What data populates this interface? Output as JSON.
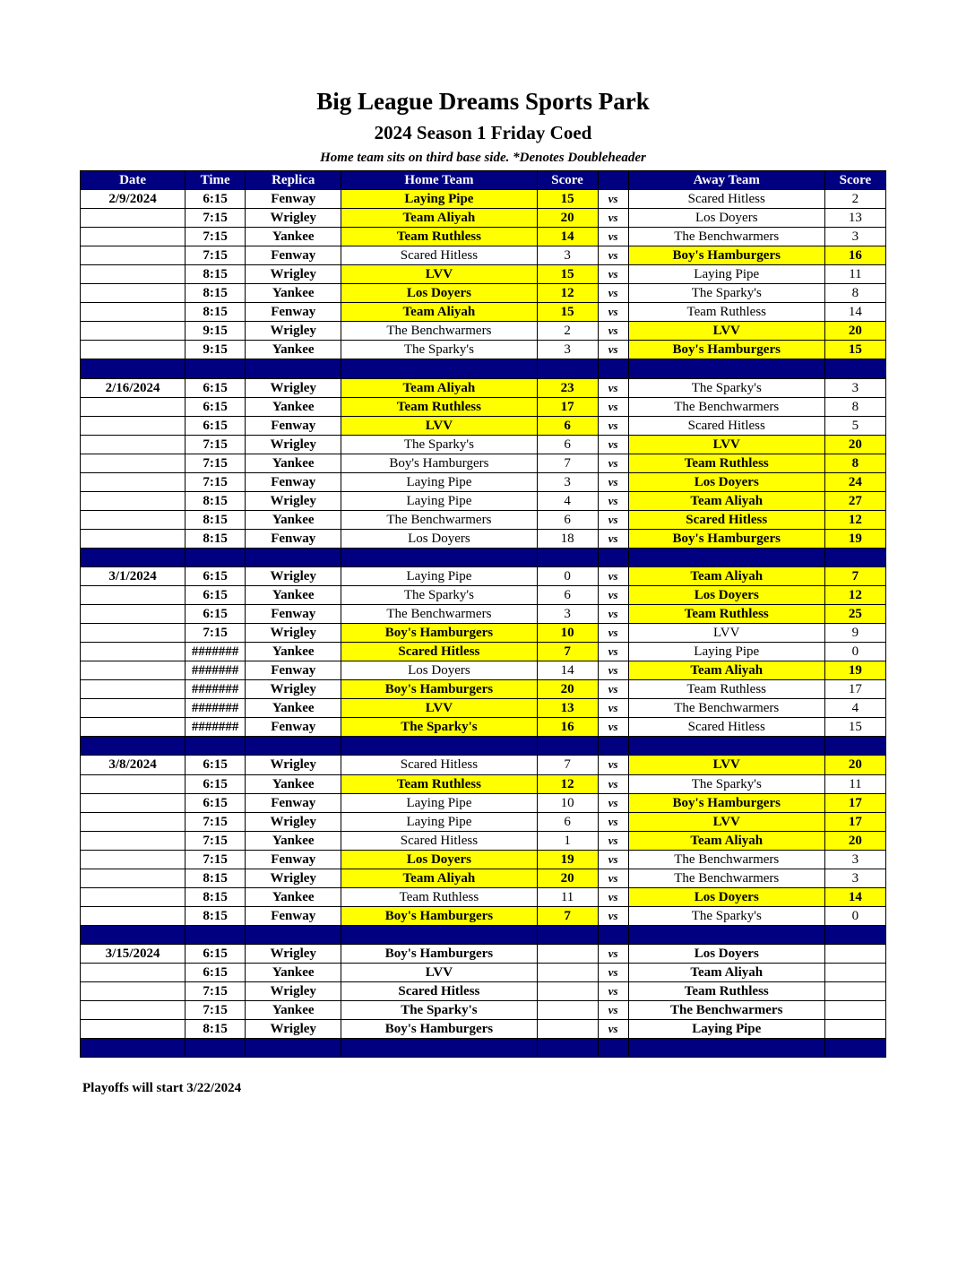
{
  "title": "Big League Dreams Sports Park",
  "subtitle": "2024 Season 1 Friday Coed",
  "note": "Home team sits on third base side.  *Denotes Doubleheader",
  "headers": [
    "Date",
    "Time",
    "Replica",
    "Home Team",
    "Score",
    "",
    "Away Team",
    "Score"
  ],
  "vs_label": "vs",
  "footer": "Playoffs will start 3/22/2024",
  "colors": {
    "header": "#000080",
    "winner": "#ffff00"
  },
  "weeks": [
    {
      "date": "2/9/2024",
      "games": [
        [
          "6:15",
          "Fenway",
          "Laying Pipe",
          "15",
          "Scared Hitless",
          "2",
          "home"
        ],
        [
          "7:15",
          "Wrigley",
          "Team Aliyah",
          "20",
          "Los Doyers",
          "13",
          "home"
        ],
        [
          "7:15",
          "Yankee",
          "Team Ruthless",
          "14",
          "The Benchwarmers",
          "3",
          "home"
        ],
        [
          "7:15",
          "Fenway",
          "Scared Hitless",
          "3",
          "Boy's Hamburgers",
          "16",
          "away"
        ],
        [
          "8:15",
          "Wrigley",
          "LVV",
          "15",
          "Laying Pipe",
          "11",
          "home"
        ],
        [
          "8:15",
          "Yankee",
          "Los Doyers",
          "12",
          "The Sparky's",
          "8",
          "home"
        ],
        [
          "8:15",
          "Fenway",
          "Team Aliyah",
          "15",
          "Team Ruthless",
          "14",
          "home"
        ],
        [
          "9:15",
          "Wrigley",
          "The Benchwarmers",
          "2",
          "LVV",
          "20",
          "away"
        ],
        [
          "9:15",
          "Yankee",
          "The Sparky's",
          "3",
          "Boy's Hamburgers",
          "15",
          "away"
        ]
      ]
    },
    {
      "date": "2/16/2024",
      "games": [
        [
          "6:15",
          "Wrigley",
          "Team Aliyah",
          "23",
          "The Sparky's",
          "3",
          "home"
        ],
        [
          "6:15",
          "Yankee",
          "Team Ruthless",
          "17",
          "The Benchwarmers",
          "8",
          "home"
        ],
        [
          "6:15",
          "Fenway",
          "LVV",
          "6",
          "Scared Hitless",
          "5",
          "home"
        ],
        [
          "7:15",
          "Wrigley",
          "The Sparky's",
          "6",
          "LVV",
          "20",
          "away"
        ],
        [
          "7:15",
          "Yankee",
          "Boy's Hamburgers",
          "7",
          "Team Ruthless",
          "8",
          "away"
        ],
        [
          "7:15",
          "Fenway",
          "Laying Pipe",
          "3",
          "Los Doyers",
          "24",
          "away"
        ],
        [
          "8:15",
          "Wrigley",
          "Laying Pipe",
          "4",
          "Team Aliyah",
          "27",
          "away"
        ],
        [
          "8:15",
          "Yankee",
          "The Benchwarmers",
          "6",
          "Scared Hitless",
          "12",
          "away"
        ],
        [
          "8:15",
          "Fenway",
          "Los Doyers",
          "18",
          "Boy's Hamburgers",
          "19",
          "away"
        ]
      ]
    },
    {
      "date": "3/1/2024",
      "games": [
        [
          "6:15",
          "Wrigley",
          "Laying Pipe",
          "0",
          "Team Aliyah",
          "7",
          "away"
        ],
        [
          "6:15",
          "Yankee",
          "The Sparky's",
          "6",
          "Los Doyers",
          "12",
          "away"
        ],
        [
          "6:15",
          "Fenway",
          "The Benchwarmers",
          "3",
          "Team Ruthless",
          "25",
          "away"
        ],
        [
          "7:15",
          "Wrigley",
          "Boy's Hamburgers",
          "10",
          "LVV",
          "9",
          "home"
        ],
        [
          "#######",
          "Yankee",
          "Scared Hitless",
          "7",
          "Laying Pipe",
          "0",
          "home"
        ],
        [
          "#######",
          "Fenway",
          "Los Doyers",
          "14",
          "Team Aliyah",
          "19",
          "away"
        ],
        [
          "#######",
          "Wrigley",
          "Boy's Hamburgers",
          "20",
          "Team Ruthless",
          "17",
          "home"
        ],
        [
          "#######",
          "Yankee",
          "LVV",
          "13",
          "The Benchwarmers",
          "4",
          "home"
        ],
        [
          "#######",
          "Fenway",
          "The Sparky's",
          "16",
          "Scared Hitless",
          "15",
          "home"
        ]
      ]
    },
    {
      "date": "3/8/2024",
      "games": [
        [
          "6:15",
          "Wrigley",
          "Scared Hitless",
          "7",
          "LVV",
          "20",
          "away"
        ],
        [
          "6:15",
          "Yankee",
          "Team Ruthless",
          "12",
          "The Sparky's",
          "11",
          "home"
        ],
        [
          "6:15",
          "Fenway",
          "Laying Pipe",
          "10",
          "Boy's Hamburgers",
          "17",
          "away"
        ],
        [
          "7:15",
          "Wrigley",
          "Laying Pipe",
          "6",
          "LVV",
          "17",
          "away"
        ],
        [
          "7:15",
          "Yankee",
          "Scared Hitless",
          "1",
          "Team Aliyah",
          "20",
          "away"
        ],
        [
          "7:15",
          "Fenway",
          "Los Doyers",
          "19",
          "The Benchwarmers",
          "3",
          "home"
        ],
        [
          "8:15",
          "Wrigley",
          "Team Aliyah",
          "20",
          "The Benchwarmers",
          "3",
          "home"
        ],
        [
          "8:15",
          "Yankee",
          "Team Ruthless",
          "11",
          "Los Doyers",
          "14",
          "away"
        ],
        [
          "8:15",
          "Fenway",
          "Boy's Hamburgers",
          "7",
          "The Sparky's",
          "0",
          "home"
        ]
      ]
    },
    {
      "date": "3/15/2024",
      "games": [
        [
          "6:15",
          "Wrigley",
          "Boy's Hamburgers",
          "",
          "Los Doyers",
          "",
          ""
        ],
        [
          "6:15",
          "Yankee",
          "LVV",
          "",
          "Team Aliyah",
          "",
          ""
        ],
        [
          "7:15",
          "Wrigley",
          "Scared Hitless",
          "",
          "Team Ruthless",
          "",
          ""
        ],
        [
          "7:15",
          "Yankee",
          "The Sparky's",
          "",
          "The Benchwarmers",
          "",
          ""
        ],
        [
          "8:15",
          "Wrigley",
          "Boy's Hamburgers",
          "",
          "Laying Pipe",
          "",
          ""
        ]
      ]
    }
  ]
}
